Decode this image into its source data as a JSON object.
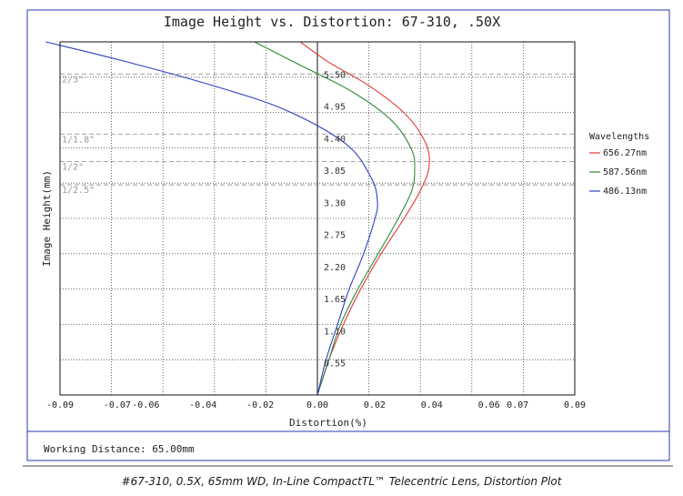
{
  "chart_data": {
    "type": "line",
    "title": "Image Height vs. Distortion: 67-310, .50X",
    "xlabel": "Distortion(%)",
    "ylabel": "Image Height(mm)",
    "xlim": [
      -0.09,
      0.09
    ],
    "ylim": [
      0,
      6.05
    ],
    "grid": true,
    "x_ticks": [
      "-0.09",
      "-0.07",
      "-0.06",
      "-0.04",
      "-0.02",
      "0.00",
      "0.02",
      "0.04",
      "0.06",
      "0.07",
      "0.09"
    ],
    "x_tick_values": [
      -0.09,
      -0.07,
      -0.06,
      -0.04,
      -0.02,
      0.0,
      0.02,
      0.04,
      0.06,
      0.07,
      0.09
    ],
    "y_ticks": [
      "0.55",
      "1.10",
      "1.65",
      "2.20",
      "2.75",
      "3.30",
      "3.85",
      "4.40",
      "4.95",
      "5.50"
    ],
    "y_tick_values": [
      0.55,
      1.1,
      1.65,
      2.2,
      2.75,
      3.3,
      3.85,
      4.4,
      4.95,
      5.5
    ],
    "sensor_markers": [
      {
        "label": "2/3\"",
        "y": 5.5
      },
      {
        "label": "1/1.8\"",
        "y": 4.47
      },
      {
        "label": "1/2\"",
        "y": 4.0
      },
      {
        "label": "1/2.5\"",
        "y": 3.6
      }
    ],
    "legend_title": "Wavelengths",
    "legend_position": "right",
    "series": [
      {
        "name": "656.27nm",
        "color": "#e03a3a",
        "points": [
          [
            0.0,
            0.0
          ],
          [
            0.004,
            0.6
          ],
          [
            0.009,
            1.2
          ],
          [
            0.015,
            1.8
          ],
          [
            0.022,
            2.4
          ],
          [
            0.03,
            3.0
          ],
          [
            0.036,
            3.5
          ],
          [
            0.039,
            3.9
          ],
          [
            0.038,
            4.3
          ],
          [
            0.031,
            4.8
          ],
          [
            0.018,
            5.3
          ],
          [
            0.004,
            5.7
          ],
          [
            -0.006,
            6.05
          ]
        ]
      },
      {
        "name": "587.56nm",
        "color": "#2e8b3a",
        "points": [
          [
            0.0,
            0.0
          ],
          [
            0.004,
            0.6
          ],
          [
            0.008,
            1.2
          ],
          [
            0.014,
            1.8
          ],
          [
            0.021,
            2.4
          ],
          [
            0.028,
            3.0
          ],
          [
            0.033,
            3.5
          ],
          [
            0.034,
            3.85
          ],
          [
            0.033,
            4.2
          ],
          [
            0.026,
            4.7
          ],
          [
            0.012,
            5.2
          ],
          [
            -0.006,
            5.65
          ],
          [
            -0.022,
            6.05
          ]
        ]
      },
      {
        "name": "486.13nm",
        "color": "#2f3fc2",
        "points": [
          [
            0.0,
            0.0
          ],
          [
            0.003,
            0.6
          ],
          [
            0.007,
            1.2
          ],
          [
            0.011,
            1.8
          ],
          [
            0.016,
            2.4
          ],
          [
            0.02,
            3.0
          ],
          [
            0.021,
            3.3
          ],
          [
            0.019,
            3.7
          ],
          [
            0.01,
            4.3
          ],
          [
            -0.012,
            4.9
          ],
          [
            -0.04,
            5.35
          ],
          [
            -0.07,
            5.75
          ],
          [
            -0.095,
            6.05
          ]
        ]
      }
    ]
  },
  "footer": {
    "working_distance": "Working Distance: 65.00mm",
    "caption": "#67-310, 0.5X, 65mm WD, In-Line CompactTL™ Telecentric Lens, Distortion Plot"
  }
}
